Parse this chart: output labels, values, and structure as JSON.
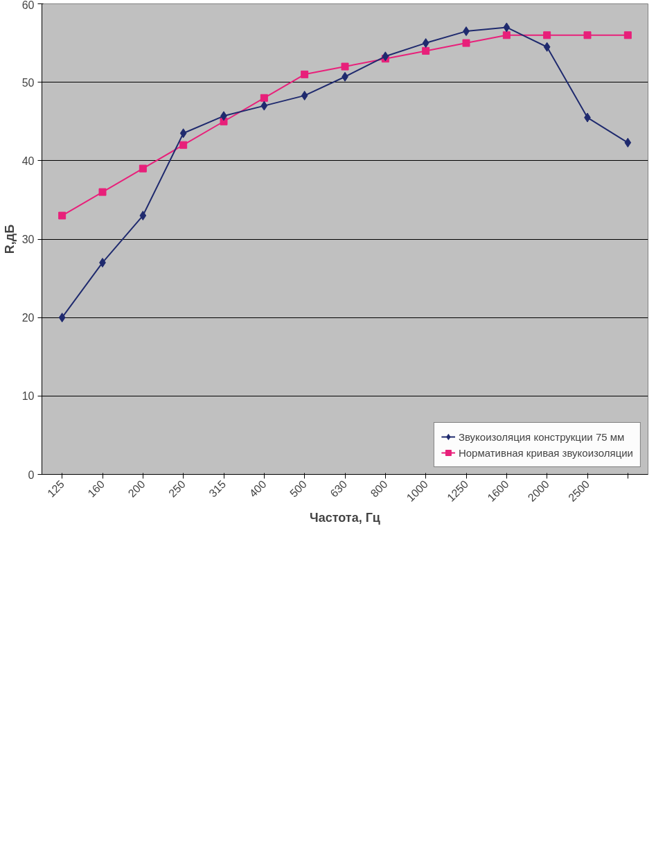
{
  "chart_data": {
    "type": "line",
    "xlabel": "Частота, Гц",
    "ylabel": "R,дБ",
    "categories": [
      "125",
      "160",
      "200",
      "250",
      "315",
      "400",
      "500",
      "630",
      "800",
      "1000",
      "1250",
      "1600",
      "2000",
      "2500",
      null
    ],
    "series": [
      {
        "name": "Звукоизоляция конструкции 75 мм",
        "color": "#1f2a6e",
        "marker": "diamond",
        "values": [
          20,
          27,
          33,
          43.5,
          45.7,
          47,
          48.3,
          50.7,
          53.3,
          55,
          56.5,
          57,
          54.5,
          45.5,
          42.3
        ]
      },
      {
        "name": "Нормативная кривая звукоизоляции",
        "color": "#e8207a",
        "marker": "square",
        "values": [
          33,
          36,
          39,
          42,
          45,
          48,
          51,
          52,
          53,
          54,
          55,
          56,
          56,
          56,
          56
        ]
      }
    ],
    "ylim": [
      0,
      60
    ],
    "yticks": [
      0,
      10,
      20,
      30,
      40,
      50,
      60
    ],
    "grid": "y",
    "legend": "bottom right"
  }
}
